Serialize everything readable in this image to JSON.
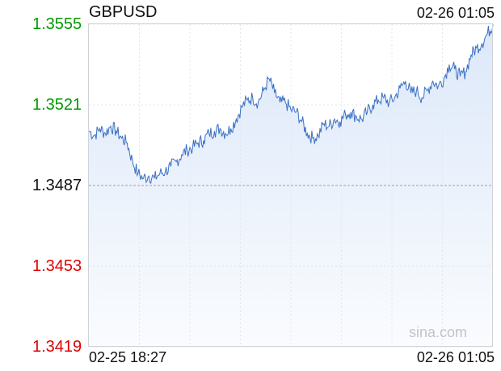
{
  "chart_data": {
    "type": "area",
    "title": "GBPUSD",
    "time_label_top": "02-26 01:05",
    "x_start_label": "02-25 18:27",
    "x_end_label": "02-26 01:05",
    "yticks": [
      {
        "label": "1.3555",
        "value": 1.3555,
        "color": "#009900"
      },
      {
        "label": "1.3521",
        "value": 1.3521,
        "color": "#009900"
      },
      {
        "label": "1.3487",
        "value": 1.3487,
        "color": "#111111"
      },
      {
        "label": "1.3453",
        "value": 1.3453,
        "color": "#dd0000"
      },
      {
        "label": "1.3419",
        "value": 1.3419,
        "color": "#dd0000"
      }
    ],
    "ylim": [
      1.3419,
      1.3555
    ],
    "reference_value": 1.3487,
    "grid": true,
    "series": [
      {
        "color": "#3a6fc4",
        "fill": "#dce8f9",
        "values": [
          1.351,
          1.3508,
          1.3511,
          1.3509,
          1.3512,
          1.351,
          1.3507,
          1.3505,
          1.3497,
          1.3492,
          1.349,
          1.3491,
          1.349,
          1.3492,
          1.3493,
          1.3495,
          1.3497,
          1.35,
          1.3502,
          1.3503,
          1.3505,
          1.3506,
          1.3509,
          1.351,
          1.3511,
          1.3509,
          1.3511,
          1.3515,
          1.352,
          1.3523,
          1.3524,
          1.3522,
          1.3527,
          1.3532,
          1.3526,
          1.3522,
          1.3522,
          1.3519,
          1.3518,
          1.3514,
          1.3509,
          1.3507,
          1.3508,
          1.3513,
          1.3512,
          1.3515,
          1.3514,
          1.3517,
          1.3518,
          1.3516,
          1.3515,
          1.3518,
          1.3521,
          1.3523,
          1.3524,
          1.3522,
          1.3524,
          1.3528,
          1.3531,
          1.3526,
          1.3527,
          1.3524,
          1.3527,
          1.3531,
          1.3529,
          1.3532,
          1.3538,
          1.3536,
          1.3533,
          1.3535,
          1.3542,
          1.3545,
          1.3547,
          1.3551,
          1.3555
        ]
      }
    ]
  },
  "watermark": "sina.com"
}
